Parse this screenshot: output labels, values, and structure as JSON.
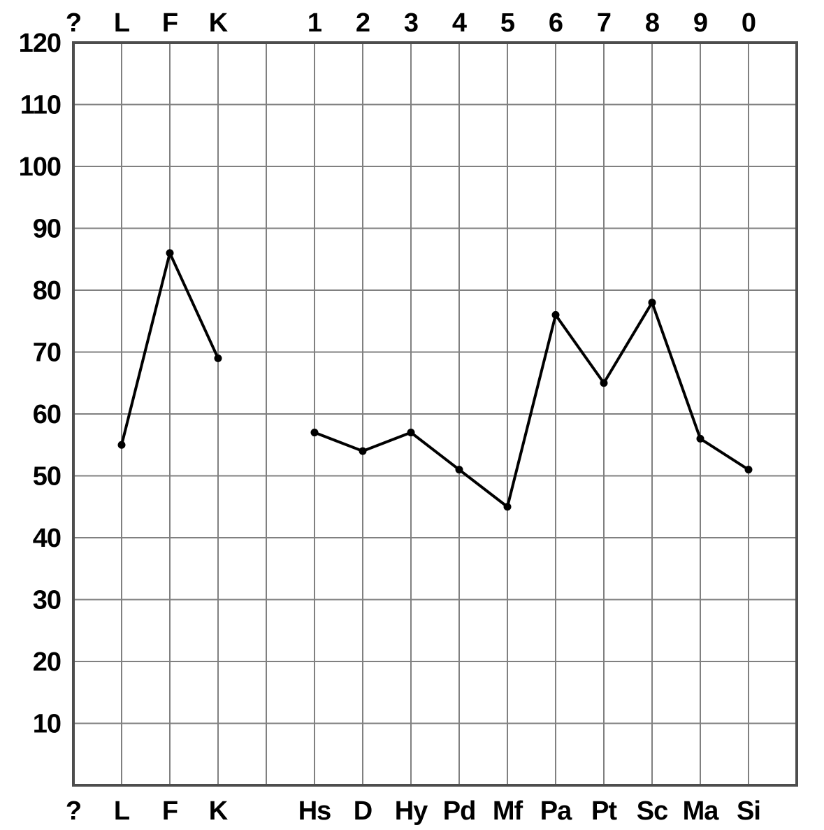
{
  "chart_data": {
    "type": "line",
    "title": "",
    "xlabel": "",
    "ylabel": "",
    "ylim": [
      0,
      120
    ],
    "y_ticks": [
      "120",
      "110",
      "100",
      "90",
      "80",
      "70",
      "60",
      "50",
      "40",
      "30",
      "20",
      "10"
    ],
    "y_tick_values": [
      120,
      110,
      100,
      90,
      80,
      70,
      60,
      50,
      40,
      30,
      20,
      10
    ],
    "top_labels": [
      "?",
      "L",
      "F",
      "K",
      "",
      "1",
      "2",
      "3",
      "4",
      "5",
      "6",
      "7",
      "8",
      "9",
      "0"
    ],
    "categories": [
      "?",
      "L",
      "F",
      "K",
      "",
      "Hs",
      "D",
      "Hy",
      "Pd",
      "Mf",
      "Pa",
      "Pt",
      "Sc",
      "Ma",
      "Si"
    ],
    "grid": true,
    "series": [
      {
        "segments": [
          {
            "categories": [
              "L",
              "F",
              "K"
            ],
            "values": [
              55,
              86,
              69
            ]
          },
          {
            "categories": [
              "Hs",
              "D",
              "Hy",
              "Pd",
              "Mf",
              "Pa",
              "Pt",
              "Sc",
              "Ma",
              "Si"
            ],
            "values": [
              57,
              54,
              57,
              51,
              45,
              76,
              65,
              78,
              56,
              51
            ]
          }
        ]
      }
    ],
    "colors": {
      "line": "#000000",
      "grid": "#808080",
      "frame": "#4d4d4d"
    }
  }
}
